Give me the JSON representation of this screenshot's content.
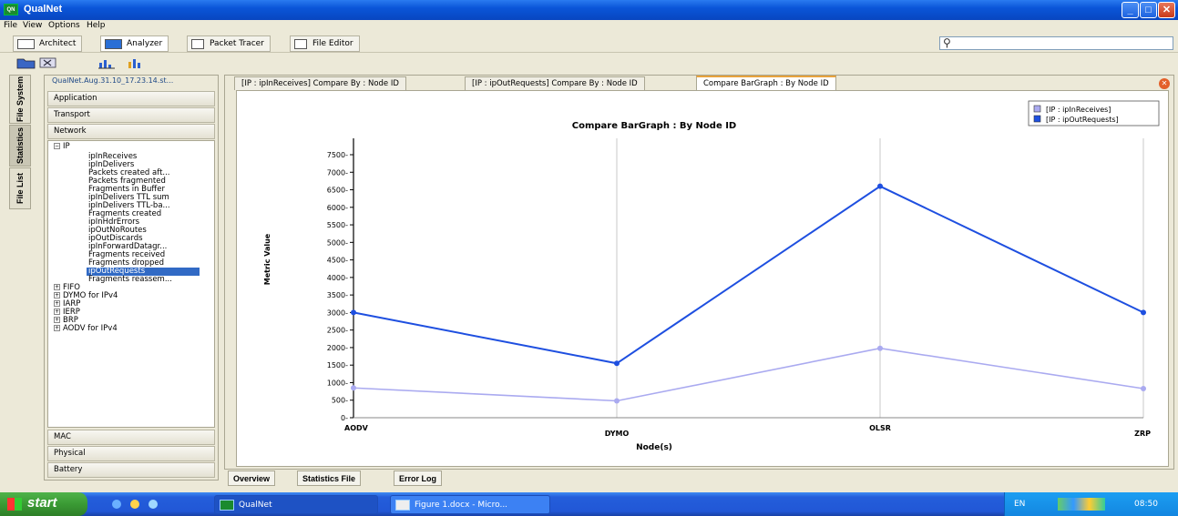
{
  "window": {
    "title": "QualNet",
    "buttons": [
      "minimize",
      "maximize",
      "close"
    ]
  },
  "menu": [
    "File",
    "View",
    "Options",
    "Help"
  ],
  "toolbar": {
    "modes": [
      "Architect",
      "Analyzer",
      "Packet Tracer",
      "File Editor"
    ],
    "search_placeholder": ""
  },
  "side_tabs": [
    "File System",
    "Statistics",
    "File List"
  ],
  "left_panel": {
    "path": "QualNet.Aug.31.10_17.23.14.st...",
    "top_categories": [
      "Application",
      "Transport",
      "Network"
    ],
    "bottom_categories": [
      "MAC",
      "Physical",
      "Battery"
    ],
    "tree_root": "IP",
    "ip_stats": [
      "ipInReceives",
      "ipInDelivers",
      "Packets created aft...",
      "Packets fragmented",
      "Fragments in Buffer",
      "ipInDelivers TTL sum",
      "ipInDelivers TTL-ba...",
      "Fragments created",
      "ipInHdrErrors",
      "ipOutNoRoutes",
      "ipOutDiscards",
      "ipInForwardDatagr...",
      "Fragments received",
      "Fragments dropped",
      "ipOutRequests",
      "Fragments reassem..."
    ],
    "selected_stat": "ipOutRequests",
    "protocols": [
      "FIFO",
      "DYMO for IPv4",
      "IARP",
      "IERP",
      "BRP",
      "AODV for IPv4"
    ]
  },
  "tabs": [
    "[IP : ipInReceives] Compare By : Node ID",
    "[IP : ipOutRequests] Compare By : Node ID",
    "Compare BarGraph : By Node ID"
  ],
  "active_tab": "Compare BarGraph : By Node ID",
  "bottom_tabs": [
    "Overview",
    "Statistics File",
    "Error Log"
  ],
  "taskbar": {
    "start": "start",
    "items": [
      "QualNet",
      "Figure 1.docx - Micro..."
    ],
    "lang": "EN",
    "clock": "08:50"
  },
  "chart_data": {
    "type": "line",
    "title": "Compare BarGraph : By Node ID",
    "xlabel": "Node(s)",
    "ylabel": "Metric Value",
    "categories": [
      "AODV",
      "DYMO",
      "OLSR",
      "ZRP"
    ],
    "ylim": [
      0,
      7500
    ],
    "yticks": [
      0,
      500,
      1000,
      1500,
      2000,
      2500,
      3000,
      3500,
      4000,
      4500,
      5000,
      5500,
      6000,
      6500,
      7000,
      7500
    ],
    "grid": "vertical",
    "legend_position": "top-right",
    "series": [
      {
        "name": "[IP : ipInReceives]",
        "color": "#aaaaf0",
        "values": [
          850,
          480,
          1980,
          830
        ]
      },
      {
        "name": "[IP : ipOutRequests]",
        "color": "#1e4fe0",
        "values": [
          3000,
          1550,
          6600,
          3000
        ]
      }
    ]
  }
}
